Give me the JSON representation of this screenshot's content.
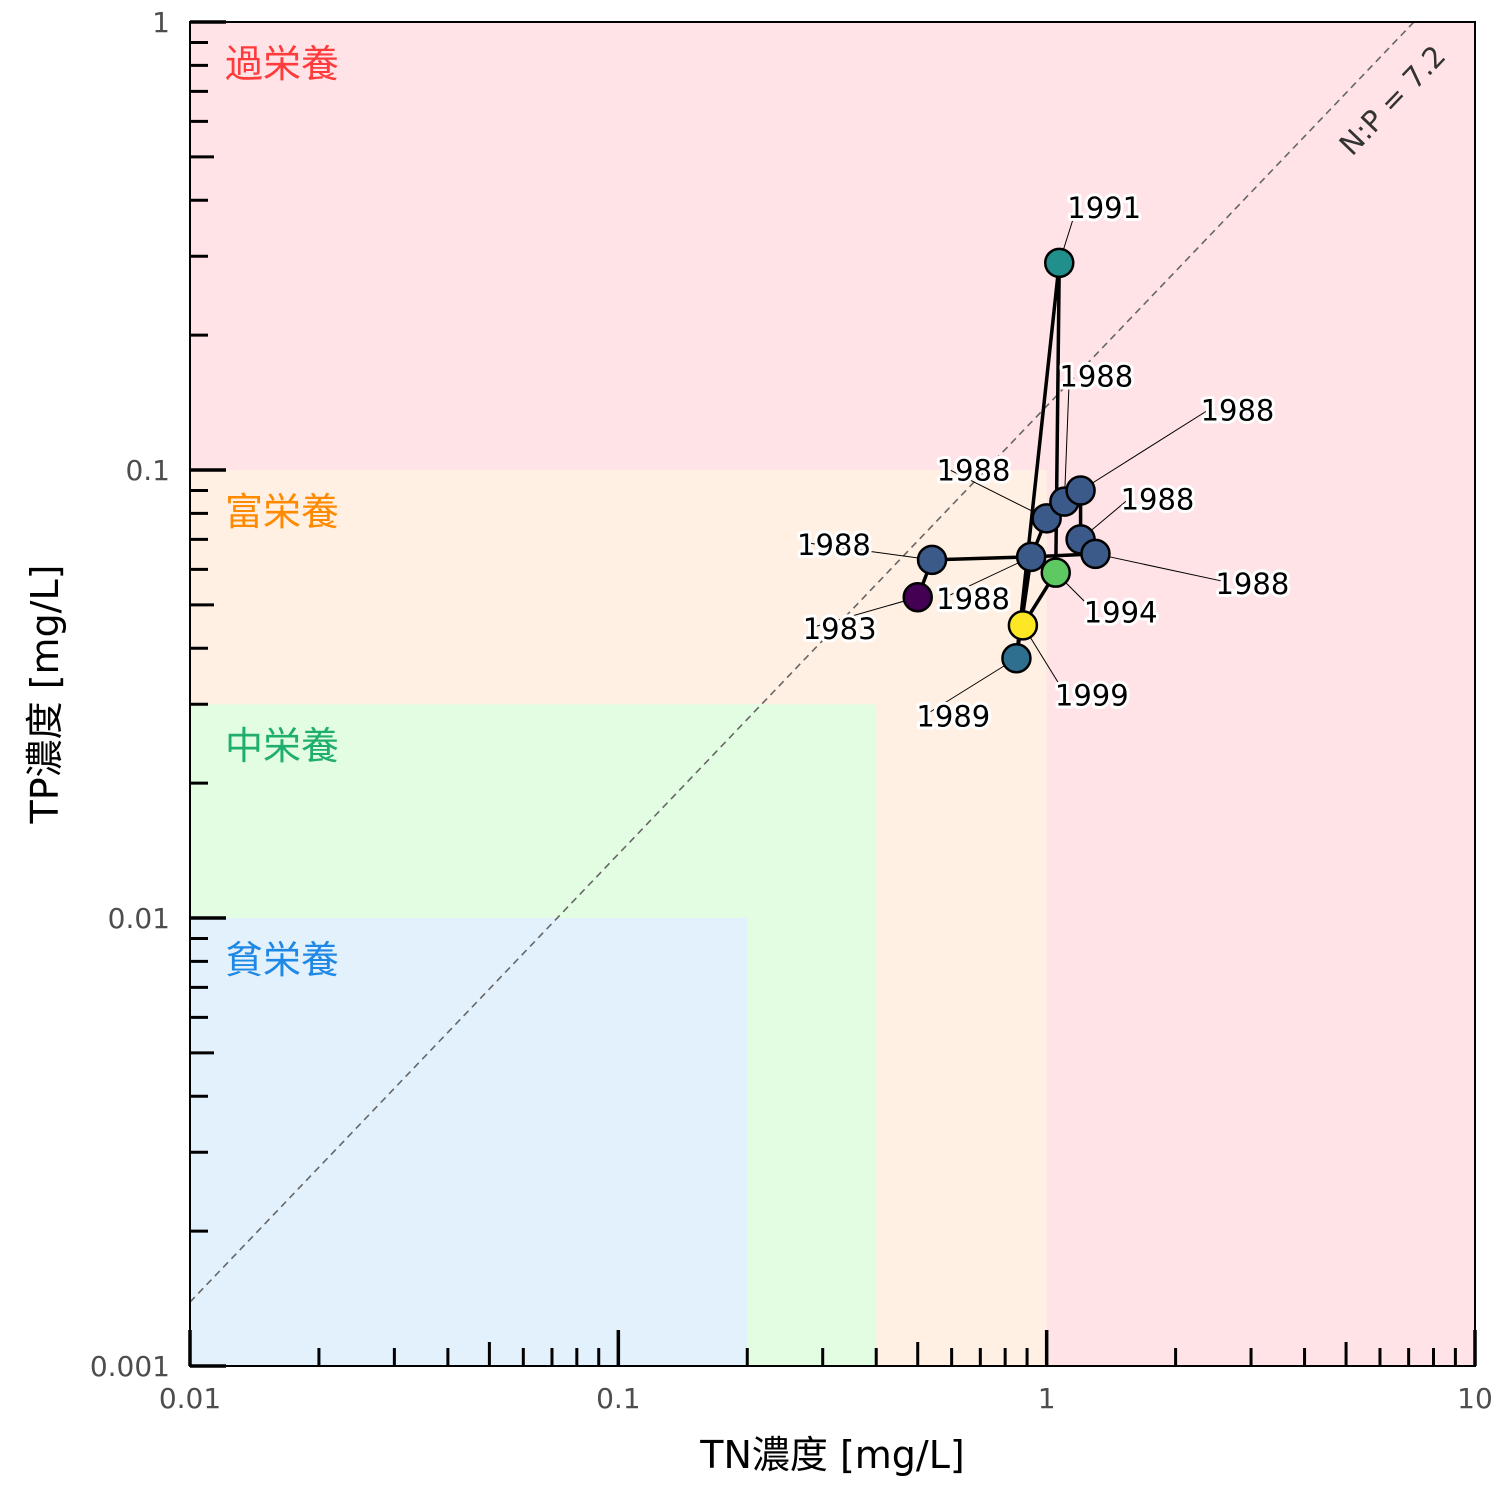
{
  "chart_data": {
    "type": "scatter",
    "xlabel": "TN濃度 [mg/L]",
    "ylabel": "TP濃度 [mg/L]",
    "x_scale": "log",
    "y_scale": "log",
    "xlim": [
      0.01,
      10
    ],
    "ylim": [
      0.001,
      1
    ],
    "x_ticks": [
      "0.01",
      "0.1",
      "1",
      "10"
    ],
    "y_ticks": [
      "0.001",
      "0.01",
      "0.1",
      "1"
    ],
    "zones": [
      {
        "label": "過栄養",
        "color": "#ff3b3b",
        "fill": "#ffe3e6",
        "tn_max": 10,
        "tp_max": 1
      },
      {
        "label": "富栄養",
        "color": "#ff8a00",
        "fill": "#fff0e3",
        "tn_max": 1,
        "tp_max": 0.1
      },
      {
        "label": "中栄養",
        "color": "#1fae6e",
        "fill": "#e3fde3",
        "tn_max": 0.4,
        "tp_max": 0.03
      },
      {
        "label": "貧栄養",
        "color": "#1f88e5",
        "fill": "#e3f1fd",
        "tn_max": 0.2,
        "tp_max": 0.01
      }
    ],
    "reference_line": {
      "label": "N:P = 7.2",
      "ratio": 7.2,
      "color": "#666666",
      "style": "dashed"
    },
    "points": [
      {
        "year": "1983",
        "tn": 0.5,
        "tp": 0.052,
        "color": "#440154"
      },
      {
        "year": "1988",
        "tn": 0.54,
        "tp": 0.063,
        "color": "#3b5a8a"
      },
      {
        "year": "1988",
        "tn": 0.92,
        "tp": 0.064,
        "color": "#3b5a8a"
      },
      {
        "year": "1988",
        "tn": 1.0,
        "tp": 0.078,
        "color": "#3b5a8a"
      },
      {
        "year": "1988",
        "tn": 1.1,
        "tp": 0.085,
        "color": "#3b5a8a"
      },
      {
        "year": "1988",
        "tn": 1.2,
        "tp": 0.09,
        "color": "#3b5a8a"
      },
      {
        "year": "1988",
        "tn": 1.2,
        "tp": 0.07,
        "color": "#3b5a8a"
      },
      {
        "year": "1988",
        "tn": 1.3,
        "tp": 0.065,
        "color": "#3b5a8a"
      },
      {
        "year": "1989",
        "tn": 0.85,
        "tp": 0.038,
        "color": "#2e6e8e"
      },
      {
        "year": "1991",
        "tn": 1.07,
        "tp": 0.29,
        "color": "#21908d"
      },
      {
        "year": "1994",
        "tn": 1.05,
        "tp": 0.059,
        "color": "#5ec962"
      },
      {
        "year": "1999",
        "tn": 0.88,
        "tp": 0.045,
        "color": "#fde725"
      }
    ],
    "path_order": [
      0,
      1,
      2,
      3,
      4,
      5,
      6,
      7,
      2,
      8,
      9,
      10,
      11
    ],
    "grid": false,
    "legend": "none"
  }
}
